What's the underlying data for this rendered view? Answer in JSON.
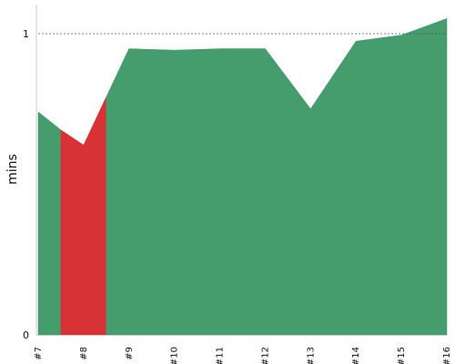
{
  "chart_data": {
    "type": "area",
    "title": "",
    "xlabel": "",
    "ylabel": "mins",
    "categories": [
      "#7",
      "#8",
      "#9",
      "#10",
      "#11",
      "#12",
      "#13",
      "#14",
      "#15",
      "#16"
    ],
    "y_ticks": [
      "0",
      "1"
    ],
    "ylim": [
      0,
      1.1
    ],
    "reference_line": {
      "value": 1.0,
      "style": "dashed"
    },
    "grid": false,
    "legend": "none",
    "x_values": [
      7,
      7.5,
      8,
      8.5,
      9,
      10,
      11,
      12,
      13,
      14,
      15,
      16
    ],
    "values": [
      0.74,
      0.68,
      0.63,
      0.79,
      0.95,
      0.945,
      0.95,
      0.95,
      0.75,
      0.975,
      0.995,
      1.05
    ],
    "highlight_range": [
      7.5,
      8.5
    ],
    "colors": {
      "area": "#459c6d",
      "highlight": "#d73236",
      "axis": "#cccccc",
      "reference": "#555555"
    }
  }
}
